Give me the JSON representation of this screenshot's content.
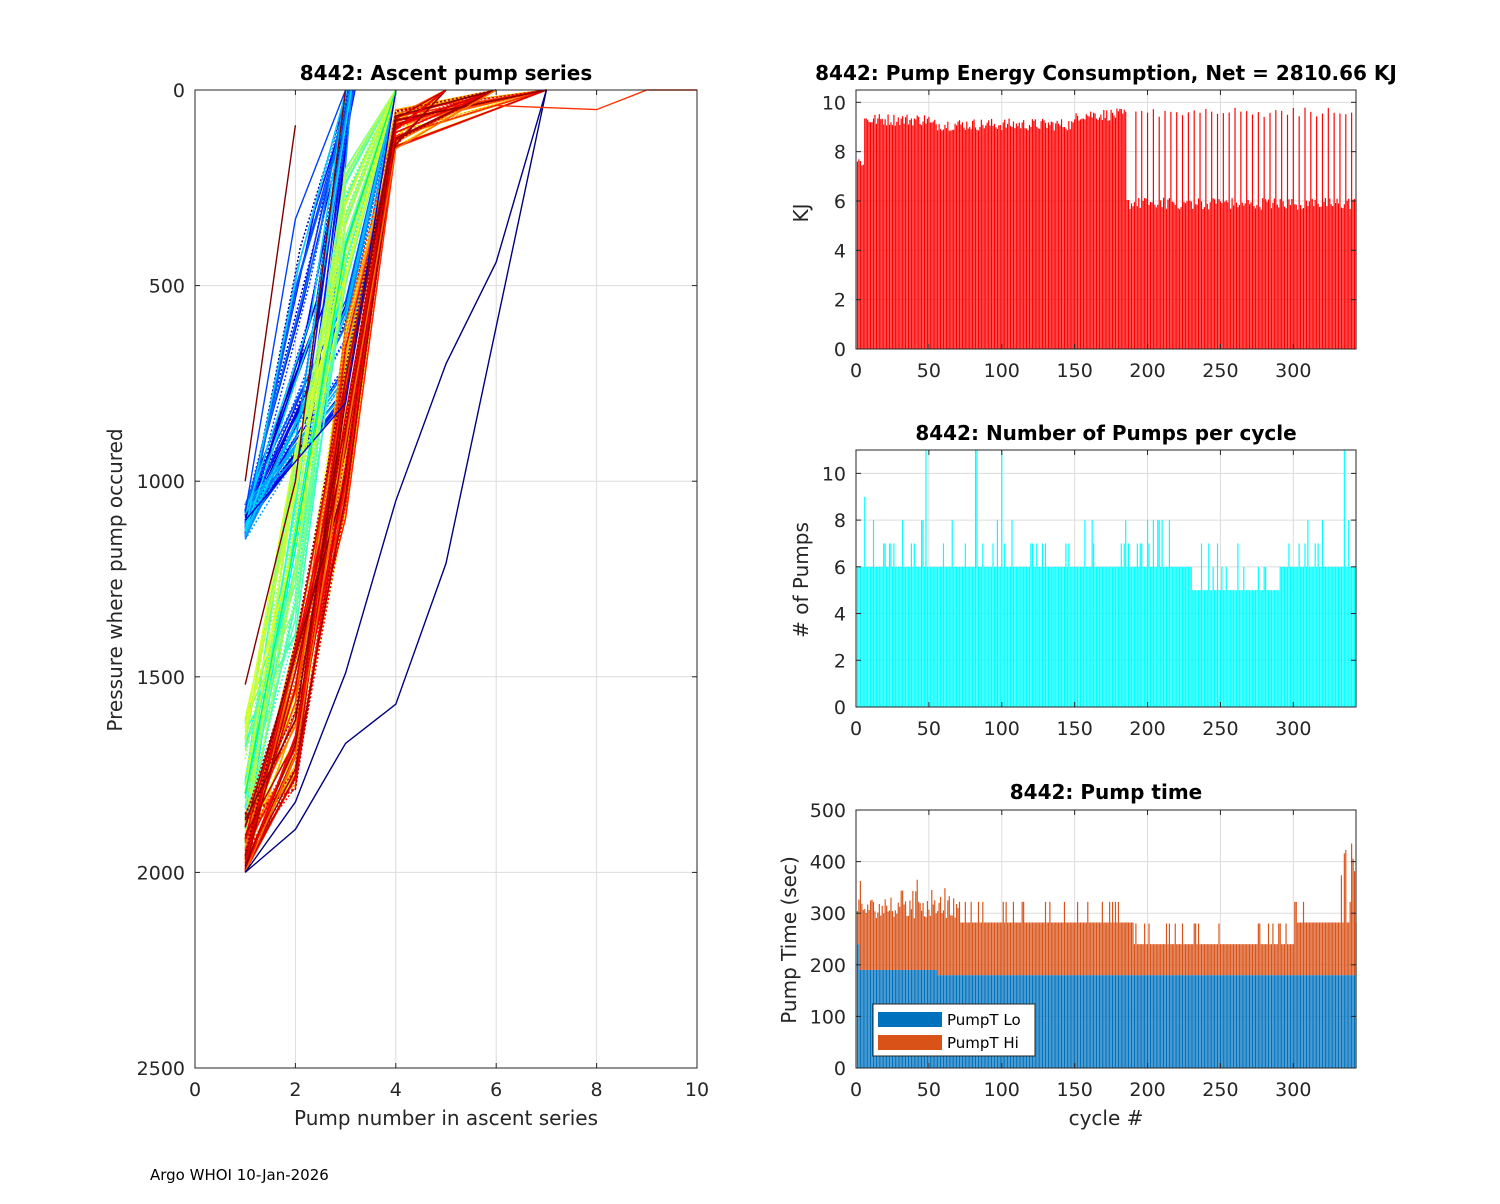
{
  "footer": "Argo WHOI 10-Jan-2026",
  "chart_data": [
    {
      "id": "ascent",
      "type": "line",
      "title": "8442: Ascent pump series",
      "xlabel": "Pump number in ascent series",
      "ylabel": "Pressure where pump occured",
      "xlim": [
        0,
        10
      ],
      "ylim": [
        0,
        2500
      ],
      "y_reversed": true,
      "xticks": [
        0,
        2,
        4,
        6,
        8,
        10
      ],
      "yticks": [
        0,
        500,
        1000,
        1500,
        2000,
        2500
      ],
      "grid": true,
      "colormap": "jet (by cycle number)",
      "representative_series": [
        {
          "color": "#0000cc",
          "x": [
            1,
            3,
            4
          ],
          "y": [
            1100,
            800,
            0
          ]
        },
        {
          "color": "#0040ff",
          "x": [
            1,
            2,
            3
          ],
          "y": [
            1080,
            330,
            0
          ]
        },
        {
          "color": "#00ff60",
          "x": [
            1,
            2,
            3,
            4
          ],
          "y": [
            1800,
            1150,
            400,
            0
          ]
        },
        {
          "color": "#ff0000",
          "x": [
            1,
            2,
            3,
            4,
            5
          ],
          "y": [
            2000,
            1650,
            1000,
            100,
            0
          ]
        },
        {
          "color": "#ff7000",
          "x": [
            1,
            2,
            3,
            4,
            6
          ],
          "y": [
            2000,
            1700,
            900,
            150,
            0
          ]
        },
        {
          "color": "#000080",
          "x": [
            1,
            2,
            3,
            4,
            5,
            7
          ],
          "y": [
            2000,
            1890,
            1670,
            1570,
            1210,
            0
          ]
        },
        {
          "color": "#000080",
          "x": [
            1,
            2,
            3,
            4,
            5,
            6,
            7
          ],
          "y": [
            2000,
            1820,
            1490,
            1050,
            700,
            440,
            0
          ]
        },
        {
          "color": "#800000",
          "x": [
            1,
            2
          ],
          "y": [
            1000,
            90
          ]
        },
        {
          "color": "#800000",
          "x": [
            1,
            2,
            3
          ],
          "y": [
            1520,
            1000,
            0
          ]
        },
        {
          "color": "#ff3000",
          "x": [
            6,
            8,
            9,
            10
          ],
          "y": [
            40,
            50,
            0,
            0
          ]
        }
      ]
    },
    {
      "id": "energy",
      "type": "bar",
      "title": "8442: Pump Energy Consumption,  Net = 2810.66 KJ",
      "xlabel": "",
      "ylabel": "KJ",
      "xlim": [
        0,
        343
      ],
      "ylim": [
        0,
        10.5
      ],
      "xticks": [
        0,
        50,
        100,
        150,
        200,
        250,
        300
      ],
      "yticks": [
        0,
        2,
        4,
        6,
        8,
        10
      ],
      "grid": true,
      "color": "#ff0000",
      "segments": [
        {
          "from_cycle": 1,
          "to_cycle": 5,
          "value": 7.6
        },
        {
          "from_cycle": 6,
          "to_cycle": 50,
          "value": 9.3
        },
        {
          "from_cycle": 51,
          "to_cycle": 150,
          "value": 9.1
        },
        {
          "from_cycle": 151,
          "to_cycle": 185,
          "value": 9.5
        },
        {
          "from_cycle": 186,
          "to_cycle": 343,
          "value": 5.9
        }
      ],
      "spikes": {
        "every_n_cycles": 4,
        "from_cycle": 190,
        "value": 9.6
      }
    },
    {
      "id": "npumps",
      "type": "bar",
      "title": "8442: Number of Pumps per cycle",
      "xlabel": "",
      "ylabel": "# of Pumps",
      "xlim": [
        0,
        343
      ],
      "ylim": [
        0,
        11
      ],
      "xticks": [
        0,
        50,
        100,
        150,
        200,
        250,
        300
      ],
      "yticks": [
        0,
        2,
        4,
        6,
        8,
        10
      ],
      "grid": true,
      "color": "#00ffff",
      "typical_value": 6,
      "segments": [
        {
          "from_cycle": 1,
          "to_cycle": 230,
          "value": 6
        },
        {
          "from_cycle": 231,
          "to_cycle": 290,
          "value": 5
        },
        {
          "from_cycle": 291,
          "to_cycle": 343,
          "value": 6
        }
      ],
      "peaks": [
        [
          6,
          9
        ],
        [
          48,
          11
        ],
        [
          82,
          11
        ],
        [
          83,
          11
        ],
        [
          100,
          11
        ],
        [
          335,
          11
        ]
      ]
    },
    {
      "id": "pumptime",
      "type": "stacked-bar",
      "title": "8442: Pump time",
      "xlabel": "cycle #",
      "ylabel": "Pump Time (sec)",
      "xlim": [
        0,
        343
      ],
      "ylim": [
        0,
        500
      ],
      "xticks": [
        0,
        50,
        100,
        150,
        200,
        250,
        300
      ],
      "yticks": [
        0,
        100,
        200,
        300,
        400,
        500
      ],
      "grid": true,
      "legend": {
        "placement": "bottom-left",
        "entries": [
          "PumpT Lo",
          "PumpT Hi"
        ]
      },
      "series": [
        {
          "name": "PumpT Lo",
          "color": "#0072bd",
          "segments": [
            {
              "from_cycle": 1,
              "to_cycle": 55,
              "value": 190
            },
            {
              "from_cycle": 56,
              "to_cycle": 343,
              "value": 180
            }
          ]
        },
        {
          "name": "PumpT Hi",
          "color": "#d95319",
          "segments_total": [
            {
              "from_cycle": 1,
              "to_cycle": 70,
              "value": 310
            },
            {
              "from_cycle": 71,
              "to_cycle": 190,
              "value": 282
            },
            {
              "from_cycle": 191,
              "to_cycle": 300,
              "value": 240
            },
            {
              "from_cycle": 301,
              "to_cycle": 343,
              "value": 282
            }
          ],
          "peak_total": 435
        }
      ]
    }
  ]
}
